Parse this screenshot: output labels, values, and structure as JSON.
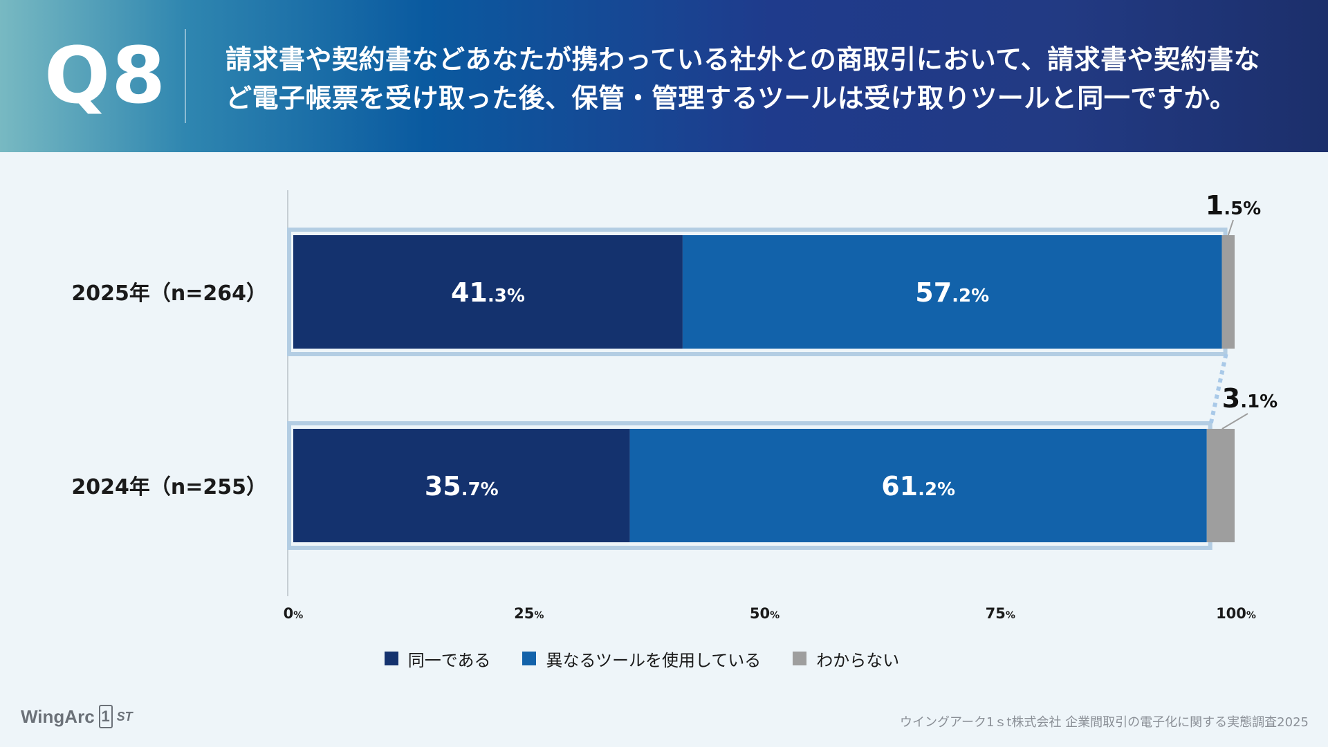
{
  "header": {
    "qnum": "Q8",
    "question": "請求書や契約書などあなたが携わっている社外との商取引において、請求書や契約書など電子帳票を受け取った後、保管・管理するツールは受け取りツールと同一ですか。"
  },
  "chart_data": {
    "type": "bar",
    "orientation": "horizontal",
    "stacked": true,
    "categories": [
      "2025年（n=264）",
      "2024年（n=255）"
    ],
    "series": [
      {
        "name": "同一である",
        "values": [
          41.3,
          35.7
        ],
        "color": "#14326e"
      },
      {
        "name": "異なるツールを使用している",
        "values": [
          57.2,
          61.2
        ],
        "color": "#1262aa"
      },
      {
        "name": "わからない",
        "values": [
          1.5,
          3.1
        ],
        "color": "#9e9e9e"
      }
    ],
    "value_labels": [
      {
        "series": 0,
        "category": 0,
        "big": "41",
        "small": ".3%"
      },
      {
        "series": 1,
        "category": 0,
        "big": "57",
        "small": ".2%"
      },
      {
        "series": 2,
        "category": 0,
        "big": "1",
        "small": ".5%"
      },
      {
        "series": 0,
        "category": 1,
        "big": "35",
        "small": ".7%"
      },
      {
        "series": 1,
        "category": 1,
        "big": "61",
        "small": ".2%"
      },
      {
        "series": 2,
        "category": 1,
        "big": "3",
        "small": ".1%"
      }
    ],
    "x_ticks": [
      {
        "value": 0,
        "num": "0",
        "unit": "%"
      },
      {
        "value": 25,
        "num": "25",
        "unit": "%"
      },
      {
        "value": 50,
        "num": "50",
        "unit": "%"
      },
      {
        "value": 75,
        "num": "75",
        "unit": "%"
      },
      {
        "value": 100,
        "num": "100",
        "unit": "%"
      }
    ],
    "xlim": [
      0,
      100
    ],
    "grid": false,
    "legend_position": "bottom-center"
  },
  "legend": {
    "items": [
      {
        "label": "同一である",
        "color": "#14326e"
      },
      {
        "label": "異なるツールを使用している",
        "color": "#1262aa"
      },
      {
        "label": "わからない",
        "color": "#9e9e9e"
      }
    ]
  },
  "footer": {
    "logo_main": "WingArc",
    "logo_mark": "1",
    "logo_suffix": "ST",
    "source": "ウイングアーク1ｓt株式会社 企業間取引の電子化に関する実態調査2025"
  }
}
